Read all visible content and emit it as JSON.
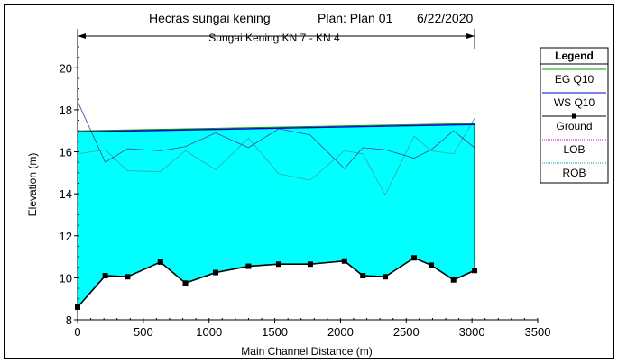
{
  "header": {
    "title": "Hecras sungai kening",
    "plan": "Plan: Plan 01",
    "date": "6/22/2020",
    "reach": "Sungai Kening KN 7 - KN 4"
  },
  "legend": {
    "title": "Legend",
    "items": [
      {
        "label": "EG  Q10",
        "color": "#00a000",
        "kind": "line"
      },
      {
        "label": "WS  Q10",
        "color": "#0000cc",
        "kind": "line"
      },
      {
        "label": "Ground",
        "color": "#000000",
        "kind": "marker-line"
      },
      {
        "label": "LOB",
        "color": "#cc00cc",
        "kind": "dotted"
      },
      {
        "label": "ROB",
        "color": "#00a0a0",
        "kind": "dotted"
      }
    ]
  },
  "colors": {
    "water_fill": "#00ffff",
    "eg": "#00a000",
    "ws": "#0000cc",
    "ground": "#000000",
    "lob": "#4040a0",
    "rob": "#40a0a0"
  },
  "chart_data": {
    "type": "line",
    "title": "Hecras sungai kening",
    "xlabel": "Main Channel Distance (m)",
    "ylabel": "Elevation (m)",
    "xlim": [
      0,
      3500
    ],
    "ylim": [
      8,
      21
    ],
    "xticks": [
      "0",
      "500",
      "1000",
      "1500",
      "2000",
      "2500",
      "3000",
      "3500"
    ],
    "yticks": [
      "8",
      "10",
      "12",
      "14",
      "16",
      "18",
      "20"
    ],
    "reach_span": [
      0,
      3020
    ],
    "series": [
      {
        "name": "Ground",
        "x": [
          0,
          210,
          380,
          630,
          820,
          1050,
          1300,
          1530,
          1770,
          2030,
          2170,
          2340,
          2560,
          2690,
          2860,
          3020
        ],
        "y": [
          8.6,
          10.1,
          10.05,
          10.75,
          9.75,
          10.25,
          10.55,
          10.65,
          10.65,
          10.8,
          10.1,
          10.05,
          10.95,
          10.6,
          9.9,
          10.35
        ]
      },
      {
        "name": "WS  Q10",
        "x": [
          0,
          3020
        ],
        "y": [
          16.95,
          17.3
        ]
      },
      {
        "name": "EG  Q10",
        "x": [
          0,
          3020
        ],
        "y": [
          17.0,
          17.35
        ]
      },
      {
        "name": "LOB",
        "x": [
          0,
          210,
          380,
          630,
          820,
          1050,
          1300,
          1530,
          1770,
          2030,
          2170,
          2340,
          2560,
          2690,
          2860,
          3020
        ],
        "y": [
          18.4,
          15.5,
          16.15,
          16.05,
          16.25,
          16.9,
          16.2,
          17.1,
          16.8,
          15.2,
          16.2,
          16.1,
          15.7,
          16.1,
          17.0,
          16.2
        ]
      },
      {
        "name": "ROB",
        "x": [
          0,
          210,
          380,
          630,
          820,
          1050,
          1300,
          1530,
          1770,
          2030,
          2170,
          2340,
          2560,
          2690,
          2860,
          3020
        ],
        "y": [
          15.9,
          16.1,
          15.1,
          15.05,
          16.05,
          15.15,
          16.65,
          14.95,
          14.65,
          16.05,
          15.9,
          13.95,
          16.75,
          16.05,
          15.9,
          17.6
        ]
      }
    ]
  }
}
